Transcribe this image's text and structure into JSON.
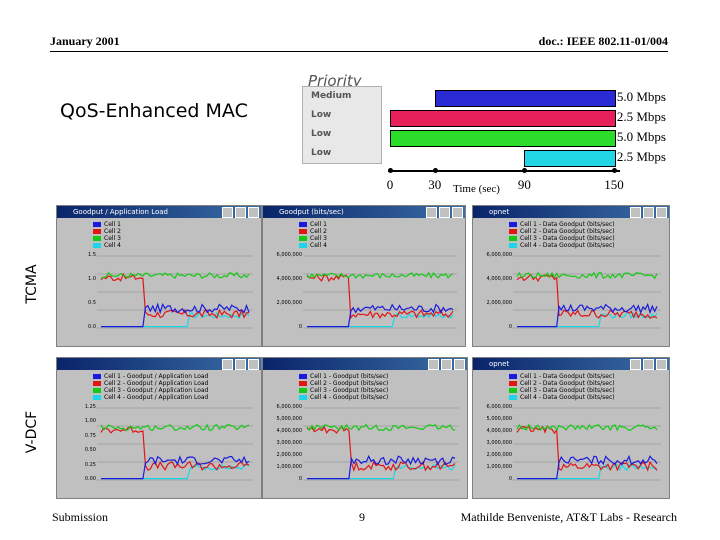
{
  "header": {
    "left": "January 2001",
    "right": "doc.: IEEE 802.11-01/004"
  },
  "title": "QoS-Enhanced MAC",
  "priority_label": "Priority",
  "priority_list": [
    "Medium",
    "Low",
    "Low",
    "Low"
  ],
  "flows": [
    {
      "rate": "5.0 Mbps",
      "color": "#2b2bd6",
      "start": 30,
      "end": 150
    },
    {
      "rate": "2.5 Mbps",
      "color": "#e8205a",
      "start": 0,
      "end": 150
    },
    {
      "rate": "5.0 Mbps",
      "color": "#2bdc2b",
      "start": 0,
      "end": 150
    },
    {
      "rate": "2.5 Mbps",
      "color": "#22d6e6",
      "start": 90,
      "end": 150
    }
  ],
  "time_axis": {
    "ticks": [
      "0",
      "30",
      "90",
      "150"
    ],
    "label": "Time (sec)"
  },
  "row_labels": {
    "top": "TCMA",
    "bottom": "V-DCF"
  },
  "windows": {
    "tcma": [
      {
        "title": "Goodput / Application Load",
        "legend": [
          "Cell 1",
          "Cell 2",
          "Cell 3",
          "Cell 4"
        ],
        "yticks": [
          "1.5",
          "1.0",
          "0.5",
          "0.0"
        ]
      },
      {
        "title": "Goodput (bits/sec)",
        "legend": [
          "Cell 1",
          "Cell 2",
          "Cell 3",
          "Cell 4"
        ],
        "yticks": [
          "6,000,000",
          "4,000,000",
          "2,000,000",
          "0"
        ]
      },
      {
        "title": "opnet",
        "legend": [
          "Cell 1 - Data Goodput (bits/sec)",
          "Cell 2 - Data Goodput (bits/sec)",
          "Cell 3 - Data Goodput (bits/sec)",
          "Cell 4 - Data Goodput (bits/sec)"
        ],
        "yticks": [
          "6,000,000",
          "4,000,000",
          "2,000,000",
          "0"
        ]
      }
    ],
    "vdcf": [
      {
        "title": "",
        "legend": [
          "Cell 1 - Goodput / Application Load",
          "Cell 2 - Goodput / Application Load",
          "Cell 3 - Goodput / Application Load",
          "Cell 4 - Goodput / Application Load"
        ],
        "yticks": [
          "1.25",
          "1.00",
          "0.75",
          "0.50",
          "0.25",
          "0.00"
        ]
      },
      {
        "title": "",
        "legend": [
          "Cell 1 - Goodput (bits/sec)",
          "Cell 2 - Goodput (bits/sec)",
          "Cell 3 - Goodput (bits/sec)",
          "Cell 4 - Goodput (bits/sec)"
        ],
        "yticks": [
          "6,000,000",
          "5,000,000",
          "4,000,000",
          "3,000,000",
          "2,000,000",
          "1,000,000",
          "0"
        ]
      },
      {
        "title": "opnet",
        "legend": [
          "Cell 1 - Data Goodput (bits/sec)",
          "Cell 2 - Data Goodput (bits/sec)",
          "Cell 3 - Data Goodput (bits/sec)",
          "Cell 4 - Data Goodput (bits/sec)"
        ],
        "yticks": [
          "6,000,000",
          "5,000,000",
          "4,000,000",
          "3,000,000",
          "2,000,000",
          "1,000,000",
          "0"
        ]
      }
    ]
  },
  "footer": {
    "left": "Submission",
    "center": "9",
    "right": "Mathilde Benveniste, AT&T Labs - Research"
  },
  "colors": {
    "cell1": "#1a1adc",
    "cell2": "#e01616",
    "cell3": "#16c816",
    "cell4": "#1ad6e6"
  }
}
